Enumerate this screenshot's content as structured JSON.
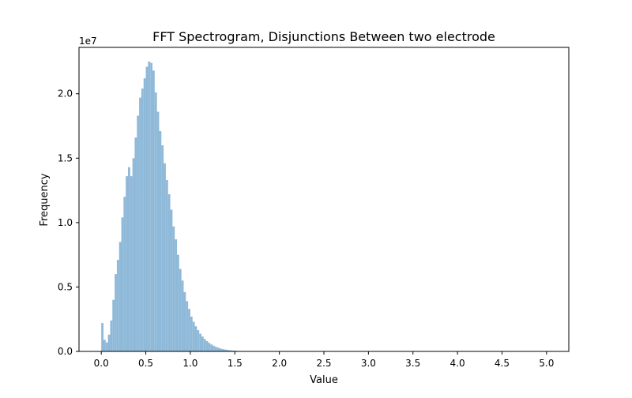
{
  "chart_data": {
    "type": "bar",
    "title": "FFT Spectrogram, Disjunctions Between two electrode",
    "xlabel": "Value",
    "ylabel": "Frequency",
    "y_offset_label": "1e7",
    "xlim": [
      -0.25,
      5.25
    ],
    "ylim": [
      0,
      23600000
    ],
    "x_ticks": [
      0.0,
      0.5,
      1.0,
      1.5,
      2.0,
      2.5,
      3.0,
      3.5,
      4.0,
      4.5,
      5.0
    ],
    "x_tick_labels": [
      "0.0",
      "0.5",
      "1.0",
      "1.5",
      "2.0",
      "2.5",
      "3.0",
      "3.5",
      "4.0",
      "4.5",
      "5.0"
    ],
    "y_ticks": [
      0,
      5000000,
      10000000,
      15000000,
      20000000
    ],
    "y_tick_labels": [
      "0.0",
      "0.5",
      "1.0",
      "1.5",
      "2.0"
    ],
    "bin_width": 0.025,
    "bar_color": "#8fb9d8",
    "series": [
      {
        "x_start": [
          0.0,
          0.025,
          0.05,
          0.075,
          0.1,
          0.125,
          0.15,
          0.175,
          0.2,
          0.225,
          0.25,
          0.275,
          0.3,
          0.325,
          0.35,
          0.375,
          0.4,
          0.425,
          0.45,
          0.475,
          0.5,
          0.525,
          0.55,
          0.575,
          0.6,
          0.625,
          0.65,
          0.675,
          0.7,
          0.725,
          0.75,
          0.775,
          0.8,
          0.825,
          0.85,
          0.875,
          0.9,
          0.925,
          0.95,
          0.975,
          1.0,
          1.025,
          1.05,
          1.075,
          1.1,
          1.125,
          1.15,
          1.175,
          1.2,
          1.225,
          1.25,
          1.275,
          1.3,
          1.325,
          1.35,
          1.375,
          1.4,
          1.425,
          1.45,
          1.475,
          1.5,
          1.525,
          1.55,
          1.575,
          1.6,
          1.625,
          1.65,
          1.675,
          1.7,
          1.725,
          1.75,
          1.775,
          1.8,
          1.825,
          1.85,
          1.875,
          1.9,
          1.925,
          1.95,
          1.975,
          2.0,
          2.025,
          2.05,
          2.075
        ],
        "values": [
          2200000,
          900000,
          700000,
          1300000,
          2400000,
          4000000,
          6000000,
          7100000,
          8500000,
          10400000,
          12000000,
          13600000,
          14300000,
          13600000,
          15000000,
          16600000,
          18300000,
          19700000,
          20400000,
          21200000,
          22100000,
          22500000,
          22400000,
          21800000,
          20100000,
          18600000,
          17100000,
          16000000,
          14600000,
          13300000,
          12200000,
          11000000,
          9700000,
          8700000,
          7500000,
          6400000,
          5500000,
          4600000,
          3900000,
          3300000,
          2700000,
          2300000,
          1950000,
          1650000,
          1380000,
          1150000,
          960000,
          800000,
          660000,
          540000,
          440000,
          360000,
          290000,
          230000,
          185000,
          150000,
          120000,
          95000,
          75000,
          60000,
          47000,
          37000,
          29000,
          22000,
          17000,
          13000,
          10000,
          7600,
          5700,
          4300,
          3200,
          2400,
          1800,
          1300,
          1000,
          700,
          500,
          400,
          300,
          200,
          150,
          100,
          70,
          50
        ]
      }
    ]
  }
}
